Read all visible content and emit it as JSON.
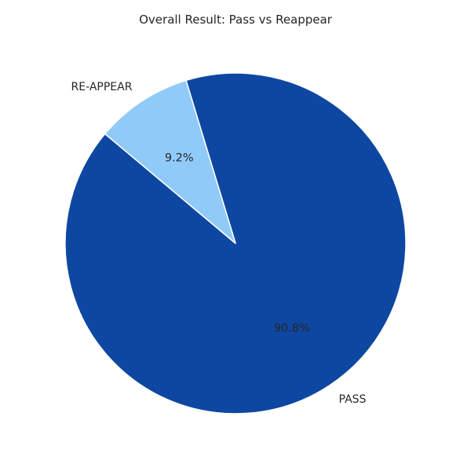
{
  "chart_data": {
    "type": "pie",
    "title": "Overall Result: Pass vs Reappear",
    "slices": [
      {
        "label": "PASS",
        "value": 90.8,
        "pct_label": "90.8%",
        "color": "#0d47a1"
      },
      {
        "label": "RE-APPEAR",
        "value": 9.2,
        "pct_label": "9.2%",
        "color": "#90caf9"
      }
    ],
    "start_angle_deg": 140,
    "direction": "counterclockwise",
    "legend": "none"
  }
}
